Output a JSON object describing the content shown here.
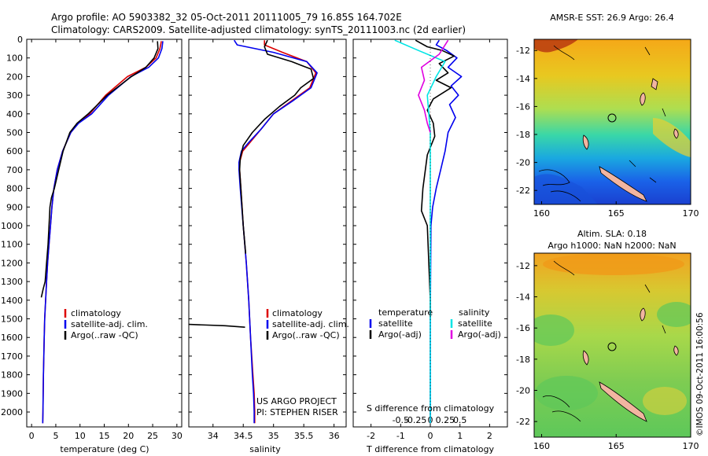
{
  "header": {
    "line1": "Argo profile: AO 5903382_32 05-Oct-2011 20111005_79 16.85S 164.702E",
    "line2": "Climatology: CARS2009. Satellite-adjusted climatology: synTS_20111003.nc (2d earlier)"
  },
  "colors": {
    "climatology": "#dd0000",
    "satellite": "#0000ee",
    "argo": "#000000",
    "salinity_satellite": "#00e5e5",
    "salinity_argo": "#e000e0",
    "land": "#f2b5a0"
  },
  "chart_data": [
    {
      "type": "line",
      "title": "",
      "xlabel": "temperature (deg C)",
      "ylabel": "",
      "xlim": [
        -1,
        31
      ],
      "ylim": [
        2080,
        0
      ],
      "xticks": [
        "0",
        "5",
        "10",
        "15",
        "20",
        "25",
        "30"
      ],
      "yticks": [
        "0",
        "100",
        "200",
        "300",
        "400",
        "500",
        "600",
        "700",
        "800",
        "900",
        "1000",
        "1100",
        "1200",
        "1300",
        "1400",
        "1500",
        "1600",
        "1700",
        "1800",
        "1900",
        "2000"
      ],
      "legend": [
        "climatology",
        "satellite-adj. clim.",
        "Argo(..raw -QC)"
      ],
      "series": [
        {
          "name": "climatology",
          "color": "#dd0000",
          "x": [
            26.8,
            26.5,
            25.7,
            23.6,
            19.8,
            15.3,
            12.0,
            9.6,
            8.1,
            6.4,
            5.3,
            4.6,
            4.2,
            3.9,
            3.6,
            3.3,
            3.1,
            2.9,
            2.7,
            2.6,
            2.45,
            2.35,
            2.3
          ],
          "y": [
            10,
            50,
            100,
            150,
            200,
            300,
            400,
            450,
            500,
            600,
            700,
            800,
            900,
            1000,
            1100,
            1200,
            1300,
            1400,
            1500,
            1600,
            1800,
            2000,
            2060
          ]
        },
        {
          "name": "satellite-adj. clim.",
          "color": "#0000ee",
          "x": [
            27.1,
            26.9,
            26.2,
            24.2,
            20.5,
            15.9,
            12.4,
            9.7,
            8.1,
            6.4,
            5.3,
            4.6,
            4.2,
            3.9,
            3.6,
            3.3,
            3.1,
            2.9,
            2.7,
            2.6,
            2.45,
            2.35,
            2.3
          ],
          "y": [
            10,
            50,
            100,
            150,
            200,
            300,
            400,
            450,
            500,
            600,
            700,
            800,
            900,
            1000,
            1100,
            1200,
            1300,
            1400,
            1500,
            1600,
            1800,
            2000,
            2060
          ]
        },
        {
          "name": "Argo(..raw -QC)",
          "color": "#000000",
          "x": [
            26.0,
            26.1,
            25.3,
            23.6,
            20.6,
            15.6,
            11.7,
            9.4,
            7.9,
            6.5,
            5.6,
            4.7,
            4.1,
            3.8,
            3.6,
            3.4,
            3.1,
            2.8,
            2.4,
            2.0
          ],
          "y": [
            10,
            50,
            100,
            150,
            200,
            300,
            400,
            450,
            500,
            600,
            700,
            800,
            850,
            900,
            1000,
            1100,
            1200,
            1300,
            1340,
            1385
          ]
        }
      ]
    },
    {
      "type": "line",
      "xlabel": "salinity",
      "xlim": [
        33.6,
        36.2
      ],
      "ylim": [
        2080,
        0
      ],
      "xticks": [
        "34",
        "34.5",
        "35",
        "35.5",
        "36"
      ],
      "legend": [
        "climatology",
        "satellite-adj. clim.",
        "Argo(..raw -QC)"
      ],
      "series": [
        {
          "name": "climatology",
          "color": "#dd0000",
          "x": [
            34.85,
            34.85,
            35.15,
            35.55,
            35.7,
            35.6,
            35.3,
            35.0,
            34.8,
            34.62,
            34.49,
            34.44,
            34.44,
            34.46,
            34.5,
            34.55,
            34.59,
            34.62,
            34.66,
            34.68,
            34.69,
            34.69
          ],
          "y": [
            5,
            30,
            70,
            120,
            180,
            260,
            330,
            400,
            480,
            550,
            600,
            660,
            700,
            800,
            1000,
            1200,
            1400,
            1600,
            1800,
            1900,
            2000,
            2060
          ]
        },
        {
          "name": "satellite-adj. clim.",
          "color": "#0000ee",
          "x": [
            34.35,
            34.4,
            35.0,
            35.55,
            35.72,
            35.62,
            35.32,
            35.0,
            34.8,
            34.6,
            34.47,
            34.43,
            34.43,
            34.45,
            34.5,
            34.55,
            34.59,
            34.62,
            34.65,
            34.67,
            34.68,
            34.68
          ],
          "y": [
            5,
            30,
            70,
            120,
            180,
            260,
            330,
            400,
            480,
            550,
            600,
            660,
            700,
            800,
            1000,
            1200,
            1400,
            1600,
            1800,
            1900,
            2000,
            2060
          ]
        },
        {
          "name": "Argo(..raw -QC)",
          "color": "#000000",
          "x": [
            34.9,
            34.85,
            34.9,
            35.3,
            35.62,
            35.66,
            35.45,
            35.35,
            35.1,
            34.85,
            34.65,
            34.5,
            34.45,
            34.44,
            34.46,
            34.5,
            34.54
          ],
          "y": [
            5,
            40,
            80,
            120,
            160,
            210,
            260,
            300,
            360,
            430,
            500,
            570,
            640,
            700,
            800,
            1000,
            1150
          ]
        },
        {
          "name": "Argo(..raw -QC) salinity spike",
          "color": "#000000",
          "x": [
            33.6,
            34.2,
            34.53
          ],
          "y": [
            1530,
            1537,
            1545
          ]
        }
      ]
    },
    {
      "type": "line",
      "xlabel": "T difference from climatology",
      "xlabel_top": "S difference from climatology",
      "xlim": [
        -2.6,
        2.6
      ],
      "ylim": [
        2080,
        0
      ],
      "xticks": [
        "-2",
        "-1",
        "0",
        "1",
        "2"
      ],
      "xticks_top": [
        "-0.5",
        "-0.25",
        "0",
        "0.25",
        "0.5"
      ],
      "legend_titles": [
        "temperature",
        "salinity"
      ],
      "legend": [
        "satellite",
        "Argo(-adj)",
        "satellite",
        "Argo(-adj)"
      ],
      "series": [
        {
          "name": "temperature satellite",
          "color": "#0000ee",
          "x": [
            0.3,
            0.2,
            0.55,
            0.9,
            0.6,
            1.05,
            0.7,
            0.95,
            0.65,
            0.85,
            0.6,
            0.5,
            0.35,
            0.2,
            0.08,
            0.02,
            0.0,
            0.0
          ],
          "y": [
            5,
            30,
            60,
            100,
            150,
            200,
            250,
            300,
            350,
            420,
            500,
            600,
            700,
            800,
            900,
            1000,
            1500,
            2060
          ]
        },
        {
          "name": "temperature Argo(-adj)",
          "color": "#000000",
          "x": [
            -0.5,
            -0.1,
            0.4,
            0.8,
            0.3,
            0.6,
            0.2,
            0.7,
            0.1,
            -0.1,
            0.1,
            0.15,
            -0.1,
            -0.25,
            -0.3,
            -0.1,
            0.0,
            0.0
          ],
          "y": [
            5,
            40,
            60,
            90,
            130,
            180,
            220,
            260,
            320,
            380,
            450,
            520,
            620,
            800,
            920,
            1000,
            1400,
            1500
          ]
        },
        {
          "name": "salinity satellite",
          "color": "#00e5e5",
          "x": [
            -1.2,
            -0.4,
            0.5,
            0.2,
            -0.1,
            0.0,
            0.0,
            0.0,
            0.0
          ],
          "y": [
            5,
            60,
            120,
            200,
            300,
            500,
            1000,
            1500,
            2060
          ]
        },
        {
          "name": "salinity Argo(-adj)",
          "color": "#e000e0",
          "x": [
            0.6,
            0.3,
            -0.3,
            -0.2,
            -0.4,
            -0.2,
            -0.1,
            0.0
          ],
          "y": [
            5,
            80,
            150,
            220,
            300,
            380,
            450,
            500
          ]
        }
      ]
    },
    {
      "type": "heatmap",
      "title": "AMSR-E SST: 26.9  Argo: 26.4",
      "xticks": [
        "160",
        "165",
        "170"
      ],
      "yticks": [
        "-12",
        "-14",
        "-16",
        "-18",
        "-20",
        "-22"
      ],
      "xlim": [
        159.5,
        170
      ],
      "ylim": [
        -23,
        -11.2
      ],
      "marker": {
        "lon": 164.7,
        "lat": -16.85
      }
    },
    {
      "type": "heatmap",
      "title": "Altim. SLA: 0.18",
      "subtitle": "Argo h1000: NaN  h2000: NaN",
      "xticks": [
        "160",
        "165",
        "170"
      ],
      "yticks": [
        "-12",
        "-14",
        "-16",
        "-18",
        "-20",
        "-22"
      ],
      "xlim": [
        159.5,
        170
      ],
      "ylim": [
        -23,
        -11.2
      ],
      "marker": {
        "lon": 164.7,
        "lat": -16.85
      }
    }
  ],
  "annotations": {
    "project": "US ARGO PROJECT",
    "pi": "PI: STEPHEN RISER",
    "credit": "©IMOS 09-Oct-2011 16:00:56"
  }
}
